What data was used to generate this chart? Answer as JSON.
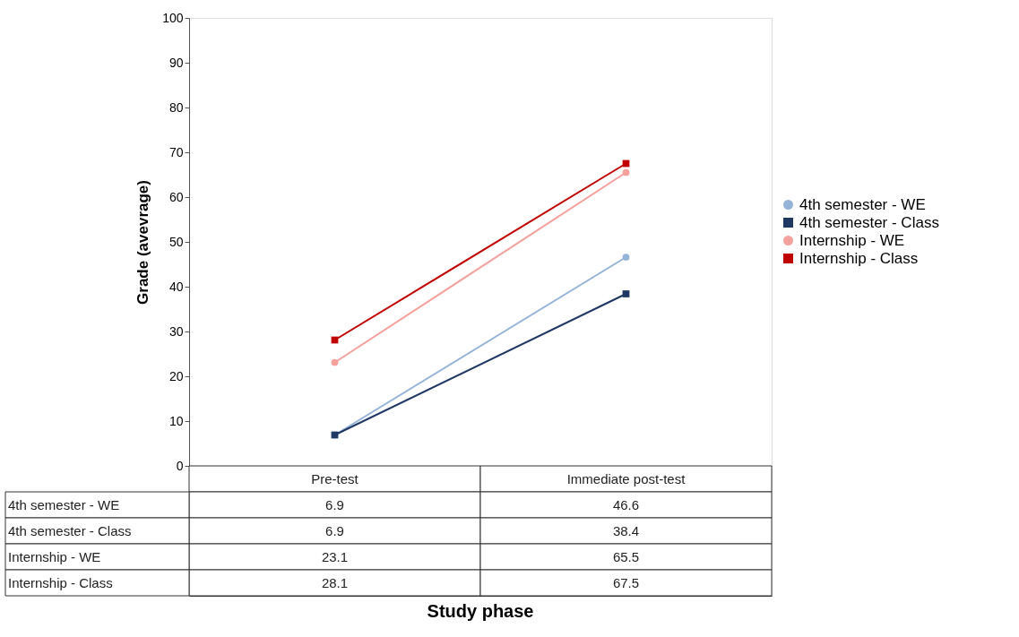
{
  "chart_data": {
    "type": "line",
    "annotations": [
      "Study phase"
    ],
    "ylabel": "Grade (avevrage)",
    "categories": [
      "Pre-test",
      "Immediate post-test"
    ],
    "series": [
      {
        "name": "4th semester - WE",
        "color": "#95b3d7",
        "marker": "circle",
        "values": [
          6.9,
          46.6
        ]
      },
      {
        "name": "4th semester - Class",
        "color": "#1f3864",
        "marker": "square",
        "values": [
          6.9,
          38.4
        ]
      },
      {
        "name": "Internship - WE",
        "color": "#f4a09c",
        "marker": "circle",
        "values": [
          23.1,
          65.5
        ]
      },
      {
        "name": "Internship - Class",
        "color": "#c00000",
        "marker": "square",
        "values": [
          28.1,
          67.5
        ]
      }
    ],
    "ylim": [
      0,
      100
    ],
    "yticks": [
      0,
      10,
      20,
      30,
      40,
      50,
      60,
      70,
      80,
      90,
      100
    ],
    "grid": false,
    "legend": "right",
    "data_labels": true,
    "line_style": "solid"
  }
}
